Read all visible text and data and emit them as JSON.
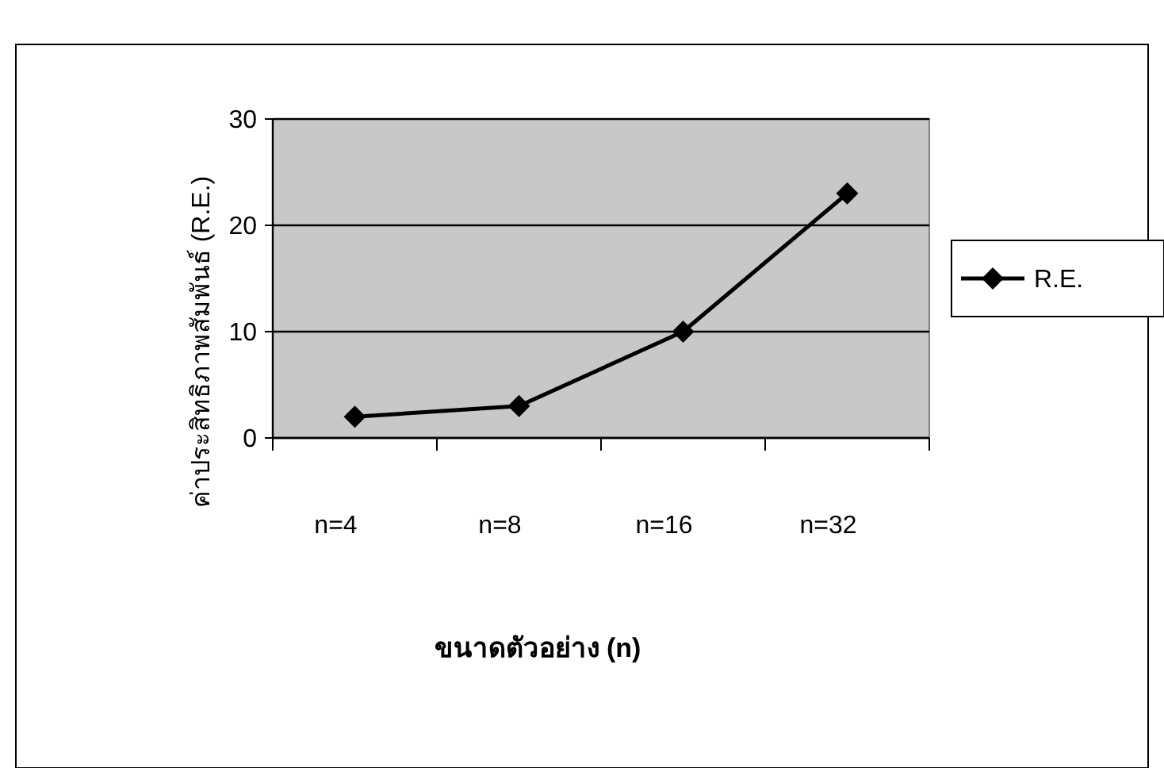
{
  "chart_data": {
    "type": "line",
    "xlabel": "ขนาดตัวอย่าง (n)",
    "ylabel": "ค่าประสิทธิภาพสัมพันธ์ (R.E.)",
    "categories": [
      "n=4",
      "n=8",
      "n=16",
      "n=32"
    ],
    "series": [
      {
        "name": "R.E.",
        "color": "#000000",
        "values": [
          2,
          3,
          10,
          23
        ]
      }
    ],
    "ylim": [
      0,
      30
    ],
    "yticks": [
      0,
      10,
      20,
      30
    ],
    "grid": "y",
    "legend": "right",
    "marker": "diamond",
    "line_style": "solid"
  }
}
